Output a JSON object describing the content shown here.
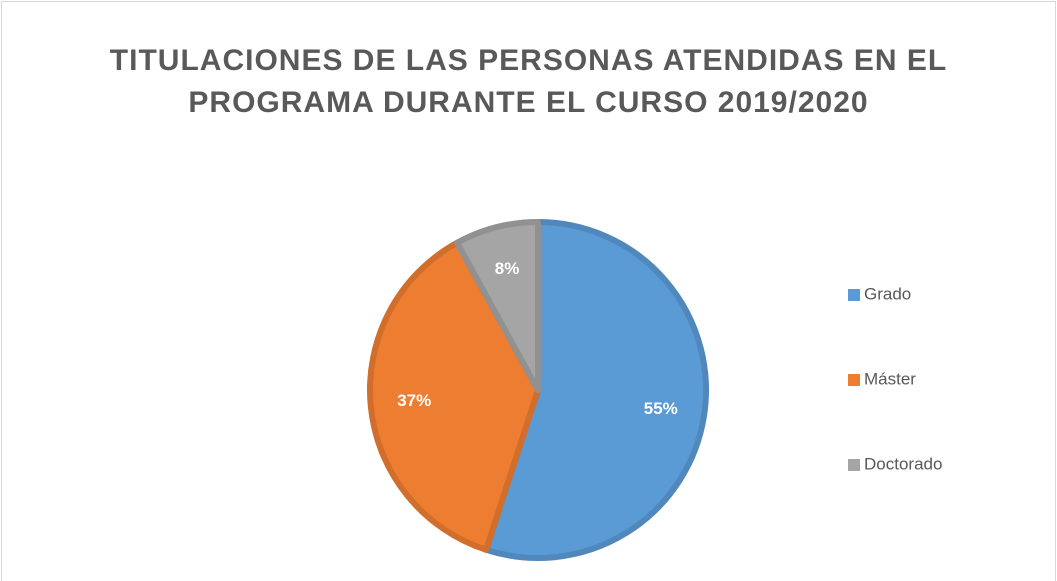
{
  "chart_data": {
    "type": "pie",
    "title": "TITULACIONES DE LAS PERSONAS ATENDIDAS EN EL PROGRAMA DURANTE EL CURSO 2019/2020",
    "categories": [
      "Grado",
      "Máster",
      "Doctorado"
    ],
    "values": [
      55,
      37,
      8
    ],
    "value_labels": [
      "55%",
      "37%",
      "8%"
    ],
    "colors": [
      "#5b9bd5",
      "#ed7d31",
      "#a5a5a5"
    ],
    "legend": "right"
  }
}
